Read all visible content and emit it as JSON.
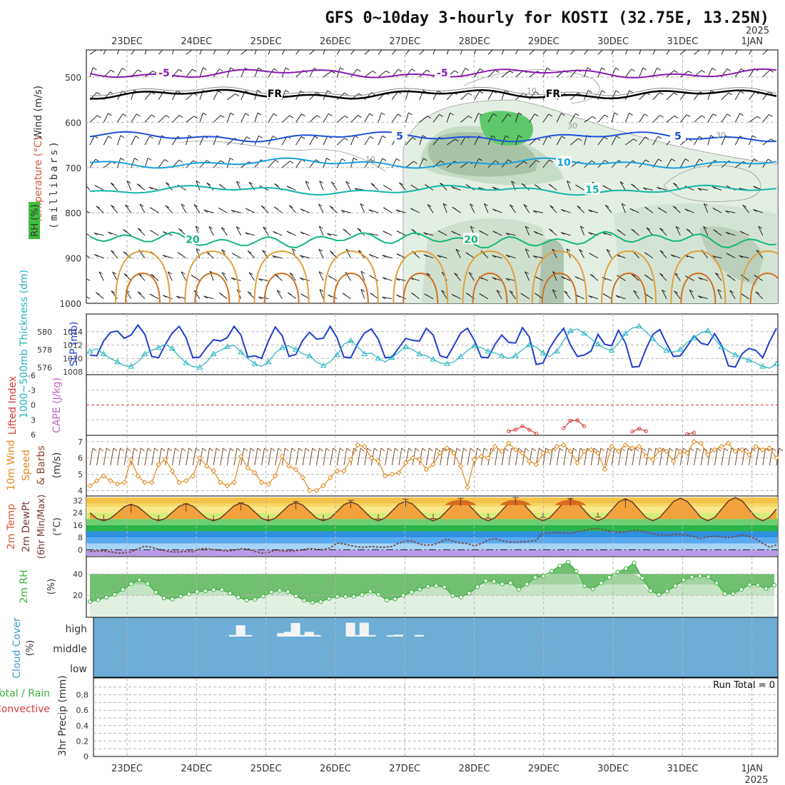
{
  "title": "GFS 0~10day 3-hourly for KOSTI (32.75E, 13.25N)",
  "year": "2025",
  "dates": [
    "23DEC",
    "24DEC",
    "25DEC",
    "26DEC",
    "27DEC",
    "28DEC",
    "29DEC",
    "30DEC",
    "31DEC",
    "1JAN"
  ],
  "colors": {
    "grid": "#b4b4b4",
    "wind_blue": "#1f3fd0",
    "teal": "#25b4c0",
    "orange": "#e08a1e",
    "cloud_bg": "#6eaed6",
    "rh_green": "#3cb03c",
    "lifted_red": "#d83a3a",
    "barb": "#7a4a2a"
  },
  "chart_data": [
    {
      "id": "upper-air",
      "type": "contour",
      "axis_labels": {
        "wind": "Wind (m/s)",
        "temperature": "Temperature (°C)",
        "rh": "RH (%)",
        "pressure": "(millibars)"
      },
      "ylim": [
        1000,
        440
      ],
      "yticks": [
        500,
        600,
        700,
        800,
        900,
        1000
      ],
      "isotherms": [
        {
          "label": "-5",
          "pressure": 492,
          "color": "#8a1ab0"
        },
        {
          "label": "FR",
          "pressure": 538,
          "color": "#000000"
        },
        {
          "label": "5",
          "pressure": 632,
          "color": "#1f4fd8"
        },
        {
          "label": "10",
          "pressure": 690,
          "color": "#19a0dc"
        },
        {
          "label": "15",
          "pressure": 750,
          "color": "#16b4a8"
        },
        {
          "label": "20",
          "pressure": 860,
          "color": "#12b87a"
        }
      ],
      "rh_contour_labels": [
        "10",
        "30"
      ]
    },
    {
      "id": "thickness-slp",
      "type": "line",
      "axis_labels": {
        "thickness": "1000~500mb Thickness (dm)",
        "slp": "SLP (mb)"
      },
      "left_ticks": [
        "580",
        "578",
        "576"
      ],
      "right_ticks": [
        "1014",
        "1012",
        "1010",
        "1008"
      ],
      "slp_range": [
        1008,
        1016
      ],
      "thickness_range": [
        575.5,
        581.5
      ],
      "slp": [
        1010.5,
        1010.4,
        1012.6,
        1013.9,
        1014.1,
        1013.0,
        1013.5,
        1015.0,
        1013.6,
        1010.3,
        1010.1,
        1012.1,
        1013.8,
        1014.8,
        1013.1,
        1010.1,
        1010.2,
        1011.6,
        1012.8,
        1012.6,
        1013.1,
        1014.8,
        1013.5,
        1010.2,
        1010.4,
        1010.0,
        1012.6,
        1014.7,
        1013.4,
        1010.3,
        1010.6,
        1012.7,
        1013.9,
        1012.9,
        1013.0,
        1014.8,
        1013.1,
        1010.2,
        1010.1,
        1012.2,
        1013.8,
        1014.4,
        1012.9,
        1010.1,
        1010.2,
        1011.6,
        1013.0,
        1012.7,
        1012.6,
        1014.5,
        1013.5,
        1010.4,
        1010.1,
        1011.9,
        1013.8,
        1014.5,
        1012.7,
        1010.2,
        1010.1,
        1012.1,
        1013.5,
        1012.4,
        1012.3,
        1014.6,
        1013.2,
        1009.1,
        1009.3,
        1011.6,
        1013.2,
        1014.5,
        1012.0,
        1010.3,
        1010.5,
        1011.1,
        1013.6,
        1012.1,
        1011.9,
        1014.2,
        1012.3,
        1008.7,
        1008.8,
        1011.4,
        1013.6,
        1014.3,
        1012.2,
        1010.3,
        1010.4,
        1011.8,
        1013.4,
        1012.3,
        1012.0,
        1013.7,
        1012.0,
        1008.9,
        1008.7,
        1010.7,
        1011.5,
        1011.2,
        1010.1,
        1012.5,
        1014.5
      ],
      "thickness": [
        577.8,
        578.1,
        577.5,
        577.0,
        576.6,
        576.2,
        576.1,
        576.6,
        577.5,
        577.9,
        578.2,
        578.6,
        578.1,
        577.2,
        576.5,
        576.1,
        576.0,
        576.6,
        577.5,
        577.9,
        578.3,
        578.5,
        577.7,
        577.0,
        576.4,
        576.1,
        576.6,
        577.6,
        578.2,
        578.4,
        578.0,
        577.5,
        577.3,
        576.6,
        576.2,
        576.6,
        577.4,
        578.6,
        579.0,
        578.3,
        577.5,
        577.6,
        577.0,
        576.6,
        577.1,
        577.7,
        578.3,
        578.0,
        577.5,
        577.3,
        576.9,
        576.5,
        576.4,
        576.6,
        577.2,
        577.9,
        578.4,
        578.2,
        577.8,
        577.6,
        577.3,
        577.0,
        577.3,
        578.0,
        578.5,
        578.3,
        577.6,
        577.2,
        577.8,
        579.0,
        580.1,
        580.3,
        579.8,
        579.2,
        578.6,
        578.1,
        577.9,
        578.7,
        579.8,
        580.4,
        580.6,
        580.0,
        579.2,
        578.4,
        577.9,
        577.7,
        578.0,
        578.8,
        579.3,
        579.9,
        580.1,
        579.2,
        578.3,
        577.8,
        577.4,
        577.1,
        576.8,
        576.5,
        576.1,
        575.9,
        576.4
      ]
    },
    {
      "id": "lifted-cape",
      "type": "line",
      "axis_labels": {
        "lifted": "Lifted Index",
        "cape": "CAPE (J/kg)"
      },
      "yticks": [
        "-6",
        "-3",
        "0",
        "3",
        "6"
      ],
      "ylim": [
        -6,
        6
      ],
      "segments": [
        {
          "x": [
            61,
            62,
            63,
            64,
            65
          ],
          "y": [
            5.3,
            5.0,
            4.3,
            5.0,
            5.8
          ]
        },
        {
          "x": [
            69,
            70,
            71,
            72
          ],
          "y": [
            4.7,
            3.2,
            3.1,
            4.3
          ]
        },
        {
          "x": [
            79,
            80,
            81
          ],
          "y": [
            5.4,
            4.8,
            5.3
          ]
        },
        {
          "x": [
            87,
            88
          ],
          "y": [
            5.9,
            5.6
          ]
        }
      ]
    },
    {
      "id": "wind10m",
      "type": "line",
      "axis_labels": {
        "main": "10m Wind",
        "speed": "Speed",
        "barbs": "& Barbs",
        "unit": "(m/s)"
      },
      "yticks": [
        "7",
        "6",
        "5",
        "4"
      ],
      "ylim": [
        3.8,
        7.3
      ],
      "speed": [
        4.3,
        4.6,
        4.9,
        4.6,
        4.4,
        4.5,
        5.9,
        4.9,
        4.5,
        4.5,
        5.6,
        5.9,
        5.2,
        4.5,
        4.6,
        4.9,
        6.0,
        5.5,
        5.2,
        4.5,
        4.3,
        4.5,
        6.1,
        5.4,
        5.1,
        4.5,
        4.4,
        4.9,
        6.1,
        5.5,
        5.3,
        4.8,
        4.0,
        4.0,
        4.3,
        4.8,
        5.2,
        5.2,
        5.9,
        6.8,
        6.7,
        6.0,
        5.8,
        4.9,
        5.0,
        5.1,
        5.7,
        6.0,
        5.9,
        5.3,
        5.6,
        6.3,
        6.6,
        6.3,
        5.5,
        4.2,
        5.9,
        6.1,
        6.0,
        6.7,
        6.4,
        6.9,
        6.5,
        6.3,
        5.8,
        5.6,
        6.3,
        6.4,
        6.7,
        6.8,
        6.4,
        5.7,
        6.4,
        6.5,
        6.3,
        5.3,
        6.7,
        6.4,
        6.8,
        6.6,
        6.7,
        6.1,
        5.9,
        6.5,
        6.4,
        5.8,
        6.4,
        6.3,
        7.0,
        6.9,
        6.2,
        6.5,
        6.7,
        6.9,
        6.4,
        6.5,
        6.2,
        6.7,
        6.5,
        6.6,
        6.0
      ]
    },
    {
      "id": "temp2m",
      "type": "area",
      "axis_labels": {
        "temp": "2m Temp",
        "dewpt": "2m DewPt",
        "minmax": "(6hr Min/Max)",
        "unit": "(°C)"
      },
      "yticks": [
        "32",
        "24",
        "16",
        "8",
        "0"
      ],
      "ylim": [
        -4,
        34
      ],
      "dewpoint": [
        -1.2,
        -0.8,
        -0.8,
        -1.4,
        -2.1,
        -2.0,
        -1.4,
        0.7,
        2.3,
        1.6,
        0.2,
        -0.7,
        -1.4,
        -1.5,
        -1.0,
        -1.3,
        0.5,
        0.8,
        0.1,
        -0.3,
        -0.8,
        -0.2,
        0.7,
        0.5,
        -1.0,
        -2.2,
        -1.8,
        -0.3,
        -0.7,
        -1.0,
        -0.6,
        0.0,
        0.8,
        0.2,
        0.1,
        1.2,
        4.4,
        3.8,
        2.7,
        1.9,
        1.6,
        2.1,
        1.7,
        1.7,
        2.1,
        4.4,
        5.7,
        5.7,
        3.7,
        2.9,
        3.3,
        4.9,
        6.8,
        5.4,
        4.4,
        4.0,
        2.5,
        4.0,
        6.3,
        7.3,
        5.9,
        5.0,
        5.0,
        5.2,
        5.4,
        6.0,
        11.1,
        10.6,
        11.3,
        11.0,
        10.8,
        11.6,
        12.4,
        13.5,
        13.8,
        12.6,
        11.9,
        11.3,
        11.6,
        12.5,
        12.3,
        11.5,
        10.5,
        9.6,
        9.4,
        10.0,
        9.9,
        9.5,
        8.5,
        7.2,
        8.4,
        8.9,
        8.4,
        7.8,
        8.6,
        9.7,
        8.9,
        7.1,
        4.1,
        1.7,
        3.2
      ],
      "max_marks": [
        29.0,
        29.8,
        30.5,
        31.3,
        32.1,
        32.8,
        33.4,
        33.9,
        33.3,
        32.3
      ],
      "min_marks": [
        19.6,
        19.5,
        19.4,
        19.5,
        19.7,
        20.0,
        20.3,
        20.6,
        20.9,
        21.2
      ]
    },
    {
      "id": "rh2m",
      "type": "area",
      "axis_labels": {
        "main": "2m RH",
        "unit": "(%)"
      },
      "yticks": [
        "40",
        "20"
      ],
      "ylim": [
        0,
        55
      ],
      "values": [
        13.9,
        15.8,
        18.1,
        20.6,
        25.3,
        30.7,
        34.5,
        31.0,
        22.7,
        17.4,
        16.3,
        19.0,
        21.2,
        23.4,
        24.1,
        25.2,
        25.3,
        21.9,
        18.1,
        15.4,
        16.2,
        19.2,
        23.1,
        24.5,
        23.5,
        19.4,
        15.1,
        13.3,
        14.0,
        16.9,
        18.9,
        18.8,
        18.8,
        20.6,
        23.7,
        20.8,
        15.5,
        16.5,
        19.9,
        23.0,
        25.6,
        28.3,
        28.9,
        27.8,
        19.6,
        18.2,
        21.9,
        27.9,
        33.7,
        33.0,
        30.6,
        31.5,
        25.6,
        30.5,
        36.8,
        38.1,
        42.8,
        47.8,
        51.1,
        42.7,
        28.8,
        25.9,
        31.4,
        36.9,
        41.9,
        45.1,
        50.4,
        36.1,
        24.3,
        20.6,
        23.9,
        28.8,
        34.5,
        37.2,
        38.2,
        37.4,
        31.4,
        21.5,
        21.5,
        25.5,
        29.9,
        29.6,
        26.3,
        29.5
      ]
    },
    {
      "id": "cloud",
      "type": "bar",
      "axis_labels": {
        "main": "Cloud Cover",
        "unit": "(%)"
      },
      "levels": [
        "high",
        "middle",
        "low"
      ],
      "high_cover": [
        {
          "x": 21,
          "v": 0.1
        },
        {
          "x": 22,
          "v": 0.72
        },
        {
          "x": 23,
          "v": 0.1
        },
        {
          "x": 28,
          "v": 0.22
        },
        {
          "x": 29,
          "v": 0.3
        },
        {
          "x": 30,
          "v": 0.86
        },
        {
          "x": 31,
          "v": 0.1
        },
        {
          "x": 32,
          "v": 0.3
        },
        {
          "x": 33,
          "v": 0.1
        },
        {
          "x": 38,
          "v": 0.88
        },
        {
          "x": 39,
          "v": 0.1
        },
        {
          "x": 40,
          "v": 0.88
        },
        {
          "x": 41,
          "v": 0.1
        },
        {
          "x": 44,
          "v": 0.08
        },
        {
          "x": 45,
          "v": 0.12
        },
        {
          "x": 48,
          "v": 0.1
        }
      ]
    },
    {
      "id": "precip",
      "type": "bar",
      "axis_labels": {
        "main": "3hr Precip (mm)",
        "total": "Total / Rain",
        "convective": "Convective"
      },
      "yticks": [
        "0.8",
        "0.6",
        "0.4",
        "0.2",
        "0"
      ],
      "ylim": [
        0,
        1
      ],
      "run_total": "Run Total = 0",
      "values": []
    }
  ]
}
